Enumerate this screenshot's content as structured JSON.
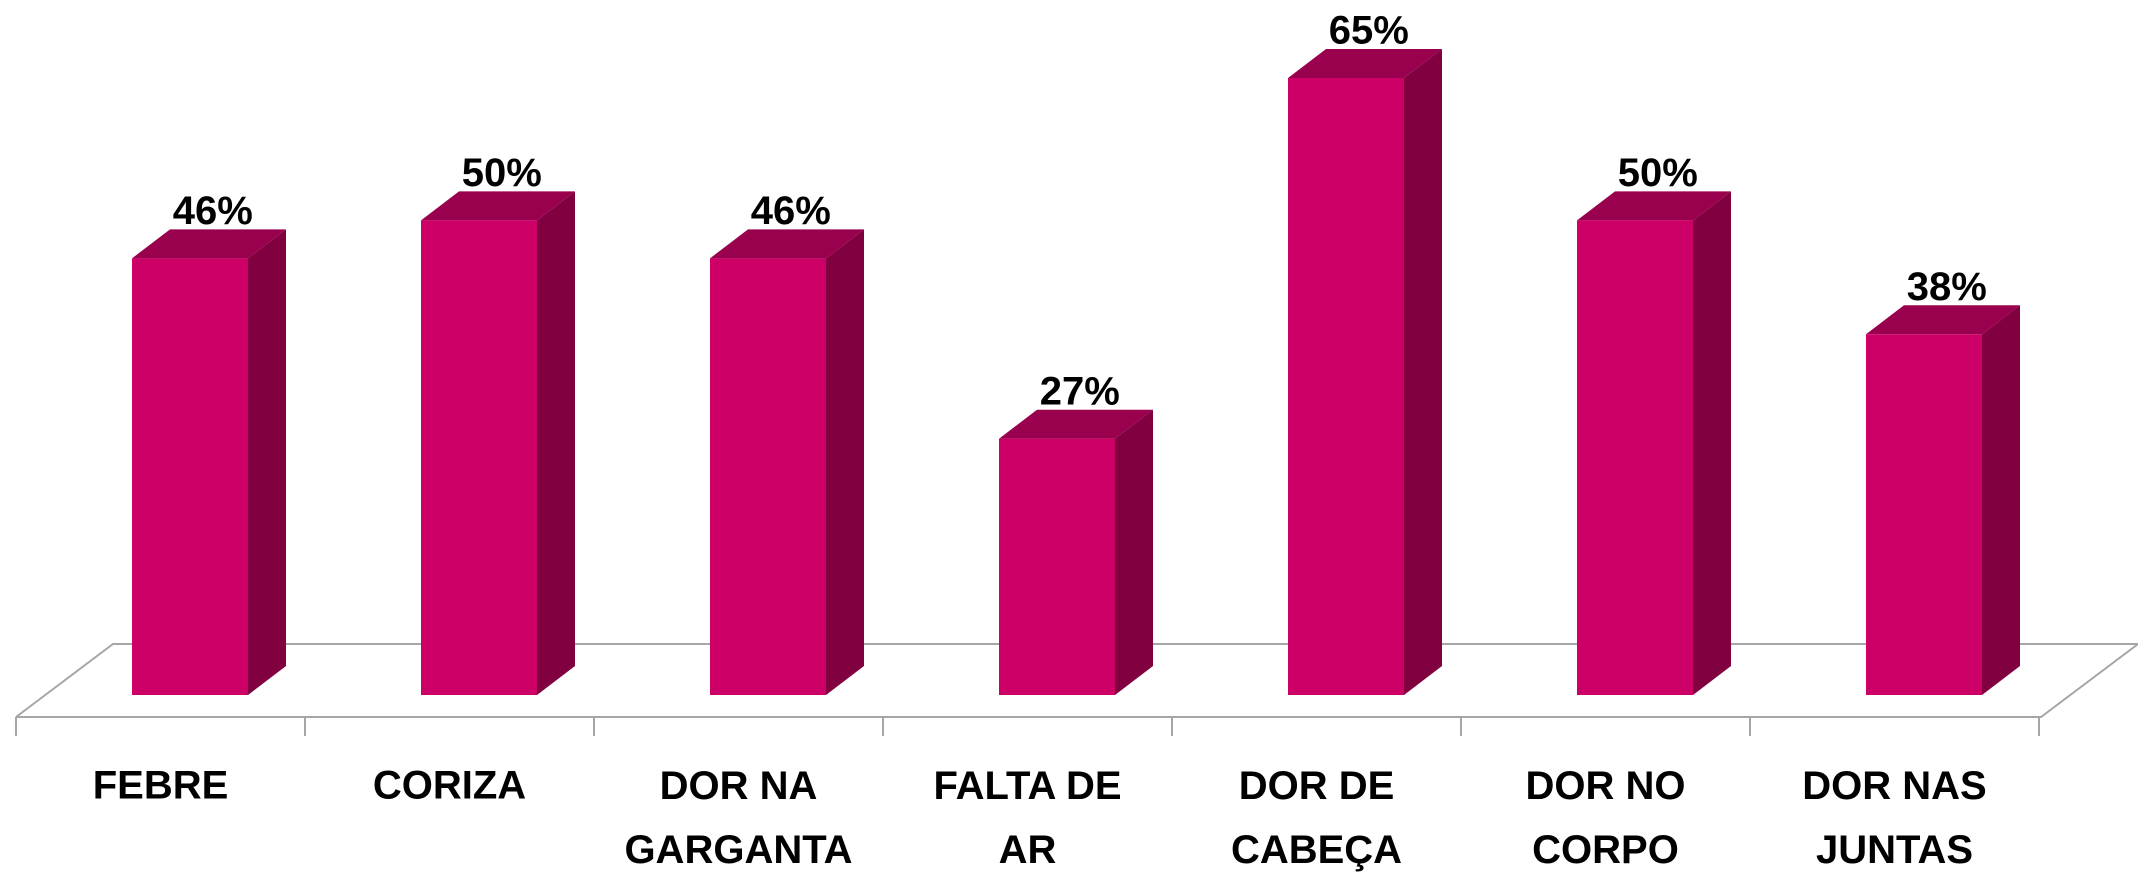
{
  "chart_data": {
    "type": "bar3d",
    "categories": [
      "FEBRE",
      "CORIZA",
      "DOR NA GARGANTA",
      "FALTA DE AR",
      "DOR DE CABEÇA",
      "DOR NO CORPO",
      "DOR NAS JUNTAS"
    ],
    "values": [
      46,
      50,
      46,
      27,
      65,
      50,
      38
    ],
    "value_labels": [
      "46%",
      "50%",
      "46%",
      "27%",
      "65%",
      "50%",
      "38%"
    ],
    "color": "#cc0066"
  }
}
